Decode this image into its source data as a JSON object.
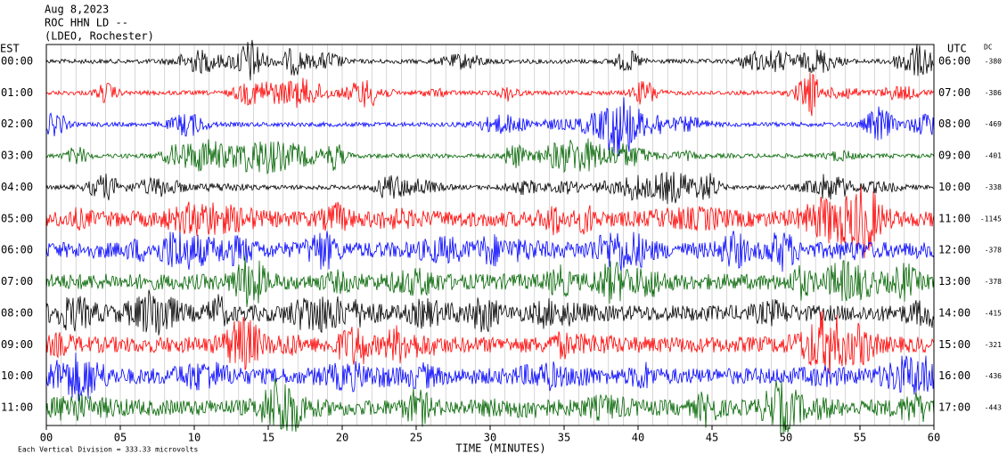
{
  "header": {
    "date": "Aug 8,2023",
    "station": "ROC HHN LD --",
    "network": "(LDEO, Rochester)"
  },
  "left_label": "EST",
  "right_label": "UTC",
  "dc_label": "DC",
  "rows": [
    {
      "est": "00:00",
      "utc": "06:00",
      "dc": -380
    },
    {
      "est": "01:00",
      "utc": "07:00",
      "dc": -386
    },
    {
      "est": "02:00",
      "utc": "08:00",
      "dc": -469
    },
    {
      "est": "03:00",
      "utc": "09:00",
      "dc": -401
    },
    {
      "est": "04:00",
      "utc": "10:00",
      "dc": -338
    },
    {
      "est": "05:00",
      "utc": "11:00",
      "dc": -1145
    },
    {
      "est": "06:00",
      "utc": "12:00",
      "dc": -378
    },
    {
      "est": "07:00",
      "utc": "13:00",
      "dc": -378
    },
    {
      "est": "08:00",
      "utc": "14:00",
      "dc": -415
    },
    {
      "est": "09:00",
      "utc": "15:00",
      "dc": -321
    },
    {
      "est": "10:00",
      "utc": "16:00",
      "dc": -436
    },
    {
      "est": "11:00",
      "utc": "17:00",
      "dc": -443
    }
  ],
  "x_axis": {
    "ticks": [
      "00",
      "05",
      "10",
      "15",
      "20",
      "25",
      "30",
      "35",
      "40",
      "45",
      "50",
      "55",
      "60"
    ],
    "title": "TIME (MINUTES)"
  },
  "footer": "Each Vertical Division =  333.33 microvolts"
}
